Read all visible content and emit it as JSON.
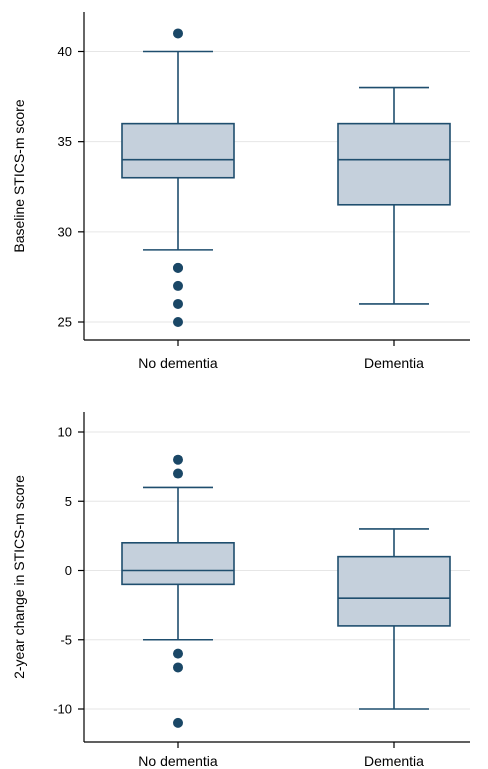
{
  "chart_data": [
    {
      "type": "box",
      "ylabel": "Baseline STICS-m score",
      "ylim": [
        24,
        42
      ],
      "yticks": [
        25,
        30,
        35,
        40
      ],
      "grid": true,
      "colors": {
        "box_fill": "#c5d0dc",
        "line": "#1f4e6e",
        "outlier": "#1a4766",
        "grid": "#e6e6e6"
      },
      "categories": [
        "No dementia",
        "Dementia"
      ],
      "boxes": [
        {
          "category": "No dementia",
          "whisker_low": 29,
          "q1": 33,
          "median": 34,
          "q3": 36,
          "whisker_high": 40,
          "outliers": [
            41,
            28,
            28,
            27,
            26,
            25
          ]
        },
        {
          "category": "Dementia",
          "whisker_low": 26,
          "q1": 31.5,
          "median": 34,
          "q3": 36,
          "whisker_high": 38,
          "outliers": []
        }
      ]
    },
    {
      "type": "box",
      "ylabel": "2-year change in STICS-m score",
      "ylim": [
        -12,
        11
      ],
      "yticks": [
        10,
        5,
        0,
        -5,
        -10
      ],
      "grid": true,
      "colors": {
        "box_fill": "#c5d0dc",
        "line": "#1f4e6e",
        "outlier": "#1a4766",
        "grid": "#e6e6e6"
      },
      "categories": [
        "No dementia",
        "Dementia"
      ],
      "boxes": [
        {
          "category": "No dementia",
          "whisker_low": -5,
          "q1": -1,
          "median": 0,
          "q3": 2,
          "whisker_high": 6,
          "outliers": [
            8,
            7,
            -6,
            -7,
            -11
          ]
        },
        {
          "category": "Dementia",
          "whisker_low": -10,
          "q1": -4,
          "median": -2,
          "q3": 1,
          "whisker_high": 3,
          "outliers": []
        }
      ]
    }
  ]
}
